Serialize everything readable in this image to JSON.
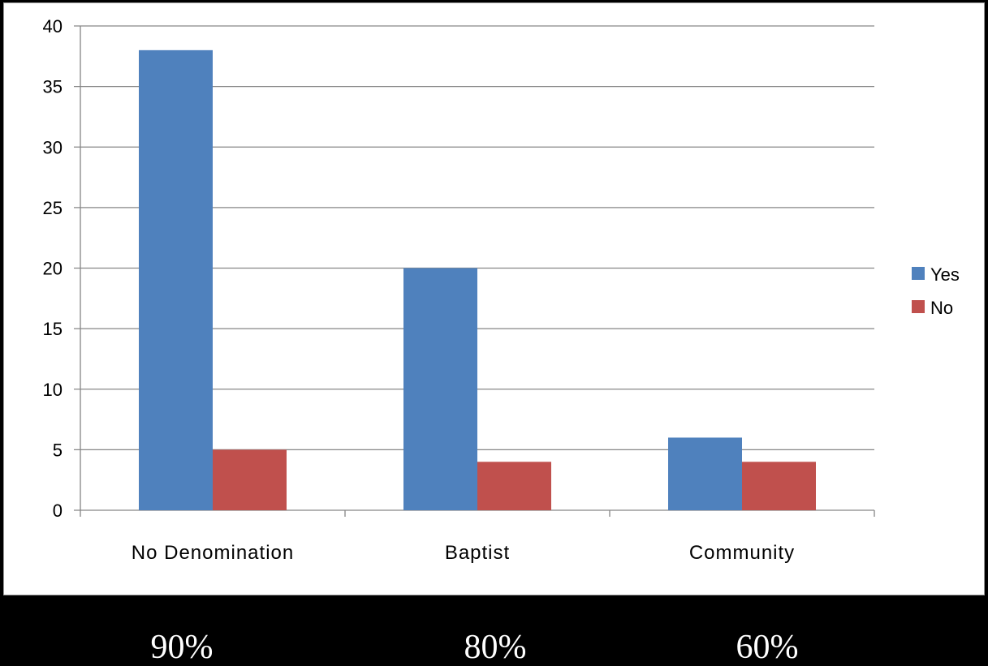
{
  "chart_data": {
    "type": "bar",
    "categories": [
      "No Denomination",
      "Baptist",
      "Community"
    ],
    "series": [
      {
        "name": "Yes",
        "values": [
          38,
          20,
          6
        ],
        "color": "#4F81BD"
      },
      {
        "name": "No",
        "values": [
          5,
          4,
          4
        ],
        "color": "#C0504D"
      }
    ],
    "ylim": [
      0,
      40
    ],
    "yticks": [
      0,
      5,
      10,
      15,
      20,
      25,
      30,
      35,
      40
    ],
    "grid": true,
    "legend_position": "right"
  },
  "percent_labels": [
    "90%",
    "80%",
    "60%"
  ]
}
